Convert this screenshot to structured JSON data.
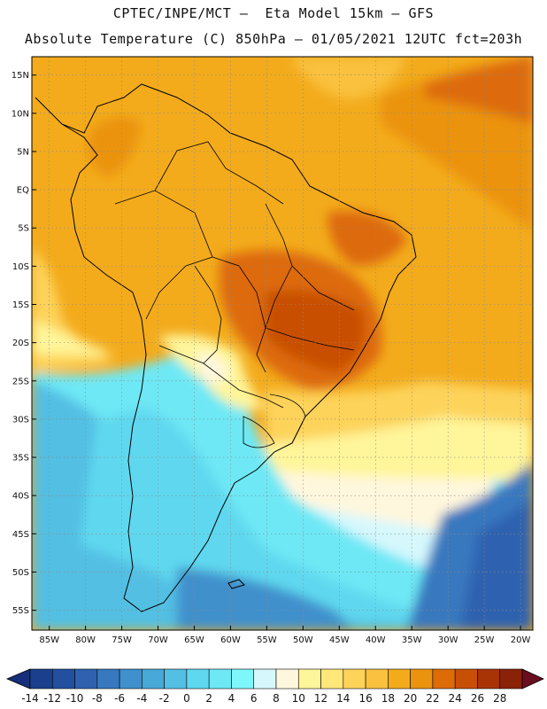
{
  "title_line1": "CPTEC/INPE/MCT –  Eta Model 15km – GFS",
  "title_line2": "Absolute Temperature (C) 850hPa – 01/05/2021 12UTC fct=203h",
  "lat_labels": [
    "15N",
    "10N",
    "5N",
    "EQ",
    "5S",
    "10S",
    "15S",
    "20S",
    "25S",
    "30S",
    "35S",
    "40S",
    "45S",
    "50S",
    "55S"
  ],
  "lat_values": [
    15,
    10,
    5,
    0,
    -5,
    -10,
    -15,
    -20,
    -25,
    -30,
    -35,
    -40,
    -45,
    -50,
    -55
  ],
  "lon_labels": [
    "85W",
    "80W",
    "75W",
    "70W",
    "65W",
    "60W",
    "55W",
    "50W",
    "45W",
    "40W",
    "35W",
    "30W",
    "25W",
    "20W"
  ],
  "lon_values": [
    -85,
    -80,
    -75,
    -70,
    -65,
    -60,
    -55,
    -50,
    -45,
    -40,
    -35,
    -30,
    -25,
    -20
  ],
  "colorbar": {
    "labels": [
      "-14",
      "-12",
      "-10",
      "-8",
      "-6",
      "-4",
      "-2",
      "0",
      "2",
      "4",
      "6",
      "8",
      "10",
      "12",
      "14",
      "16",
      "18",
      "20",
      "22",
      "24",
      "26",
      "28"
    ],
    "colors": [
      "#1a3f8c",
      "#22509f",
      "#2e62b0",
      "#3878bf",
      "#3f90cc",
      "#48a8d8",
      "#52bfe3",
      "#5fd8ef",
      "#6ee8f5",
      "#7ef7fb",
      "#d6f8fd",
      "#fff7dd",
      "#fff59a",
      "#ffe779",
      "#fdd35a",
      "#f9c13e",
      "#f3ab1c",
      "#eb930e",
      "#dd6b08",
      "#c85006",
      "#a83406",
      "#8a2207"
    ],
    "low_color": "#172f7a",
    "high_color": "#6a0d1f"
  }
}
